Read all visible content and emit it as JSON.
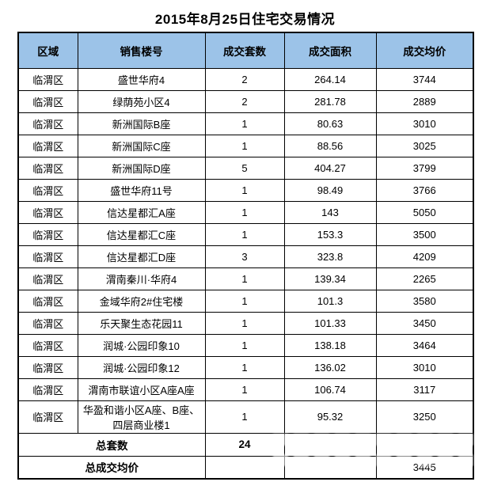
{
  "title": "2015年8月25日住宅交易情况",
  "chart_data": {
    "type": "table",
    "title": "2015年8月25日住宅交易情况",
    "columns": [
      "区域",
      "销售楼号",
      "成交套数",
      "成交面积",
      "成交均价"
    ],
    "rows": [
      {
        "region": "临渭区",
        "building": "盛世华府4",
        "units": "2",
        "area": "264.14",
        "price": "3744"
      },
      {
        "region": "临渭区",
        "building": "绿荫苑小区4",
        "units": "2",
        "area": "281.78",
        "price": "2889"
      },
      {
        "region": "临渭区",
        "building": "新洲国际B座",
        "units": "1",
        "area": "80.63",
        "price": "3010"
      },
      {
        "region": "临渭区",
        "building": "新洲国际C座",
        "units": "1",
        "area": "88.56",
        "price": "3025"
      },
      {
        "region": "临渭区",
        "building": "新洲国际D座",
        "units": "5",
        "area": "404.27",
        "price": "3799"
      },
      {
        "region": "临渭区",
        "building": "盛世华府11号",
        "units": "1",
        "area": "98.49",
        "price": "3766"
      },
      {
        "region": "临渭区",
        "building": "信达星都汇A座",
        "units": "1",
        "area": "143",
        "price": "5050"
      },
      {
        "region": "临渭区",
        "building": "信达星都汇C座",
        "units": "1",
        "area": "153.3",
        "price": "3500"
      },
      {
        "region": "临渭区",
        "building": "信达星都汇D座",
        "units": "3",
        "area": "323.8",
        "price": "4209"
      },
      {
        "region": "临渭区",
        "building": "渭南秦川·华府4",
        "units": "1",
        "area": "139.34",
        "price": "2265"
      },
      {
        "region": "临渭区",
        "building": "金域华府2#住宅楼",
        "units": "1",
        "area": "101.3",
        "price": "3580"
      },
      {
        "region": "临渭区",
        "building": "乐天聚生态花园11",
        "units": "1",
        "area": "101.33",
        "price": "3450"
      },
      {
        "region": "临渭区",
        "building": "润城·公园印象10",
        "units": "1",
        "area": "138.18",
        "price": "3464"
      },
      {
        "region": "临渭区",
        "building": "润城·公园印象12",
        "units": "1",
        "area": "136.02",
        "price": "3010"
      },
      {
        "region": "临渭区",
        "building": "渭南市联谊小区A座A座",
        "units": "1",
        "area": "106.74",
        "price": "3117"
      },
      {
        "region": "临渭区",
        "building": "华盈和谐小区A座、B座、四层商业楼1",
        "units": "1",
        "area": "95.32",
        "price": "3250"
      }
    ],
    "summary": {
      "total_units_label": "总套数",
      "total_units_value": "24",
      "avg_price_label": "总成交均价",
      "avg_price_value": "3445"
    }
  },
  "colors": {
    "header_bg": "#9CC3E8",
    "border": "#000000",
    "text": "#000000",
    "watermark": "rgba(255,255,255,0.55)"
  }
}
